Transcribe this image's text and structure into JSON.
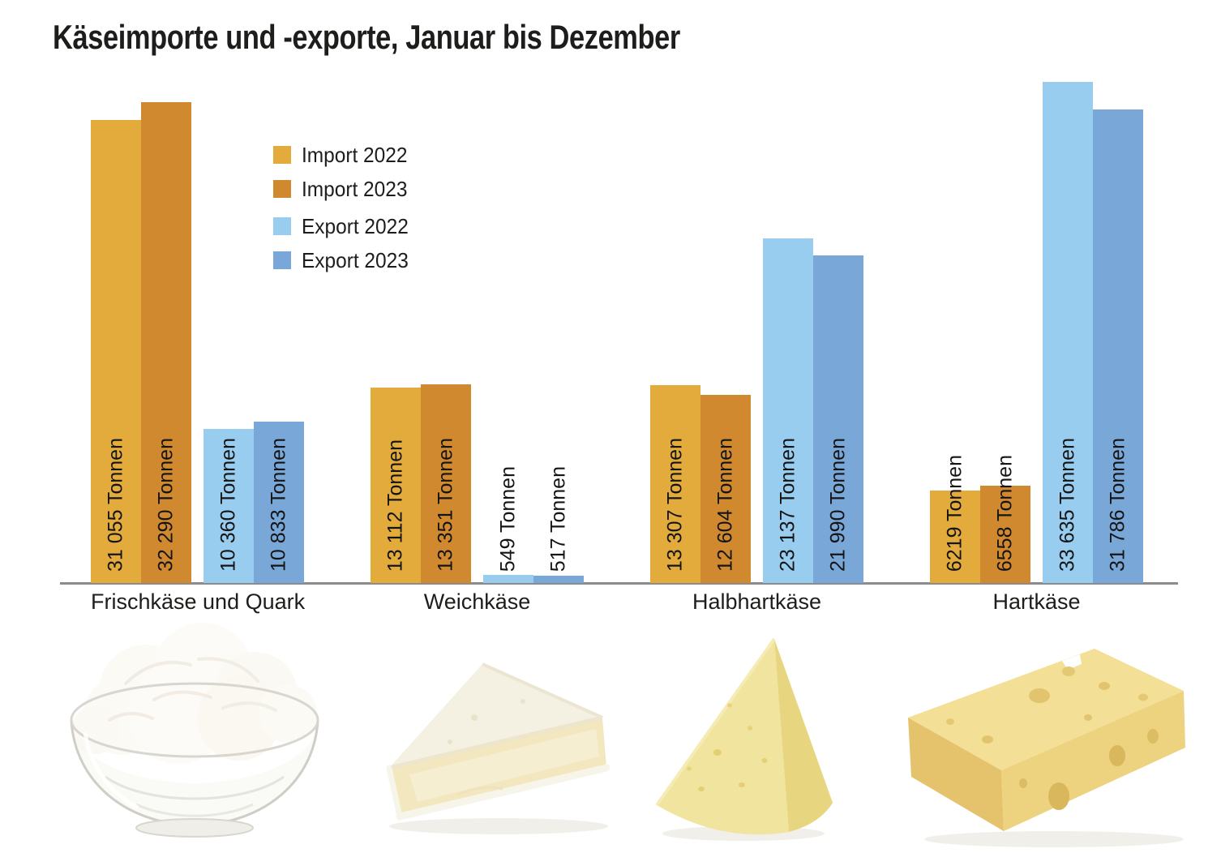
{
  "title": "Käseimporte und -exporte, Januar bis Dezember",
  "chart_data": {
    "type": "bar",
    "title": "Käseimporte und -exporte, Januar bis Dezember",
    "unit": "Tonnen",
    "categories": [
      "Frischkäse und Quark",
      "Weichkäse",
      "Halbhartkäse",
      "Hartkäse"
    ],
    "series": [
      {
        "name": "Import 2022",
        "color": "#E2AB3B",
        "values": [
          31055,
          13112,
          13307,
          6219
        ],
        "value_labels": [
          "31 055 Tonnen",
          "13 112 Tonnen",
          "13 307 Tonnen",
          "6219 Tonnen"
        ]
      },
      {
        "name": "Import 2023",
        "color": "#D0892F",
        "values": [
          32290,
          13351,
          12604,
          6558
        ],
        "value_labels": [
          "32 290 Tonnen",
          "13 351 Tonnen",
          "12 604 Tonnen",
          "6558 Tonnen"
        ]
      },
      {
        "name": "Export 2022",
        "color": "#98CDF0",
        "values": [
          10360,
          549,
          23137,
          33635
        ],
        "value_labels": [
          "10 360 Tonnen",
          "549 Tonnen",
          "23 137 Tonnen",
          "33 635 Tonnen"
        ]
      },
      {
        "name": "Export 2023",
        "color": "#79A7D8",
        "values": [
          10833,
          517,
          21990,
          31786
        ],
        "value_labels": [
          "10 833 Tonnen",
          "517 Tonnen",
          "21 990 Tonnen",
          "31 786 Tonnen"
        ]
      }
    ],
    "ylim": [
      0,
      33635
    ],
    "grid": false,
    "legend_position": "upper-left",
    "axis_color": "#8C8C8C",
    "label_color": "#141414"
  },
  "photos": [
    {
      "name": "frischkaese-quark-photo"
    },
    {
      "name": "weichkaese-photo"
    },
    {
      "name": "halbhartkaese-photo"
    },
    {
      "name": "hartkaese-photo"
    }
  ]
}
